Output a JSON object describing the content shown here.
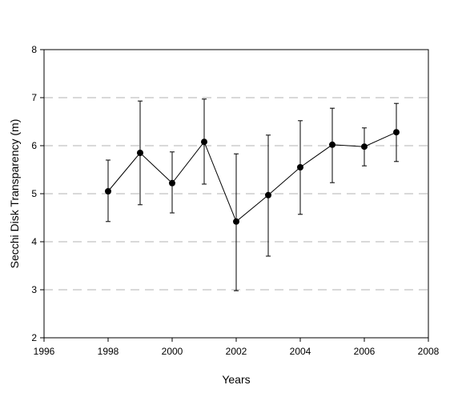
{
  "chart_data": {
    "type": "line",
    "title": "",
    "xlabel": "Years",
    "ylabel": "Secchi Disk Transparency (m)",
    "xlim": [
      1996,
      2008
    ],
    "ylim": [
      2,
      8
    ],
    "x_ticks": [
      1996,
      1998,
      2000,
      2002,
      2004,
      2006,
      2008
    ],
    "y_ticks": [
      2,
      3,
      4,
      5,
      6,
      7,
      8
    ],
    "x_tick_labels": [
      "1996",
      "1998",
      "2000",
      "2002",
      "2004",
      "2006",
      "2008"
    ],
    "y_tick_labels": [
      "2",
      "3",
      "4",
      "5",
      "6",
      "7",
      "8"
    ],
    "grid": "horizontal dashed",
    "legend": "none",
    "colors": {
      "line": "#000000",
      "marker": "#000000",
      "grid": "#b3b3b3",
      "axis": "#000000"
    },
    "series": [
      {
        "x": [
          1998,
          1999,
          2000,
          2001,
          2002,
          2003,
          2004,
          2005,
          2006,
          2007
        ],
        "y": [
          5.05,
          5.85,
          5.22,
          6.08,
          4.42,
          4.97,
          5.55,
          6.02,
          5.98,
          6.28
        ],
        "error_upper": [
          5.7,
          6.93,
          5.87,
          6.97,
          5.83,
          6.22,
          6.52,
          6.78,
          6.37,
          6.88
        ],
        "error_lower": [
          4.42,
          4.77,
          4.6,
          5.2,
          2.98,
          3.7,
          4.57,
          5.23,
          5.58,
          5.67
        ]
      }
    ]
  }
}
